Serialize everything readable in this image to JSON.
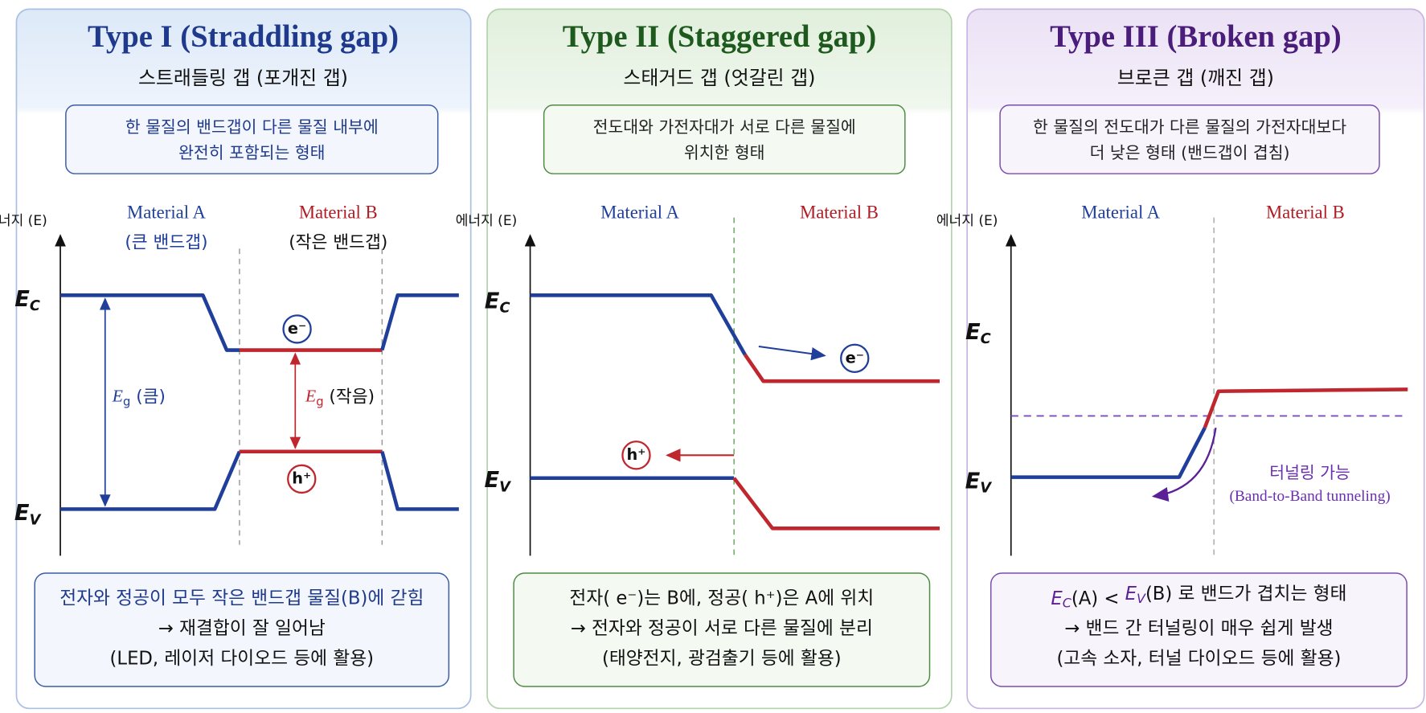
{
  "panels": [
    {
      "title": "Type I (Straddling gap)",
      "subtitle": "스트래들링 갭 (포개진 갭)",
      "description": [
        "한 물질의 밴드갭이 다른 물질 내부에",
        "완전히 포함되는 형태"
      ],
      "axis_label": "에너지 (E)",
      "material_a": "Material A",
      "material_a_note": "(큰 밴드갭)",
      "material_b": "Material B",
      "material_b_note": "(작은 밴드갭)",
      "conduction_label": {
        "symbol": "E",
        "subscript": "C"
      },
      "valence_label": {
        "symbol": "E",
        "subscript": "V"
      },
      "gap_large": {
        "symbol": "E",
        "subscript": "g",
        "note": "(큼)"
      },
      "gap_small": {
        "symbol": "E",
        "subscript": "g",
        "note": "(작음)"
      },
      "electron": "e⁻",
      "hole": "h⁺",
      "summary": [
        "전자와 정공이 모두 작은 밴드갭 물질(B)에 갇힘",
        "→ 재결합이 잘 일어남",
        "(LED, 레이저 다이오드 등에 활용)"
      ]
    },
    {
      "title": "Type II (Staggered gap)",
      "subtitle": "스태거드 갭 (엇갈린 갭)",
      "description": [
        "전도대와 가전자대가 서로 다른 물질에",
        "위치한 형태"
      ],
      "axis_label": "에너지 (E)",
      "material_a": "Material A",
      "material_b": "Material B",
      "conduction_label": {
        "symbol": "E",
        "subscript": "C"
      },
      "valence_label": {
        "symbol": "E",
        "subscript": "V"
      },
      "electron": "e⁻",
      "hole": "h⁺",
      "summary": [
        "전자( e⁻)는 B에, 정공( h⁺)은 A에 위치",
        "→ 전자와 정공이 서로 다른 물질에 분리",
        "(태양전지, 광검출기 등에 활용)"
      ]
    },
    {
      "title": "Type III (Broken gap)",
      "subtitle": "브로큰 갭 (깨진 갭)",
      "description": [
        "한 물질의 전도대가 다른 물질의 가전자대보다",
        "더 낮은 형태 (밴드갭이 겹침)"
      ],
      "axis_label": "에너지 (E)",
      "material_a": "Material A",
      "material_b": "Material B",
      "conduction_label": {
        "symbol": "E",
        "subscript": "C"
      },
      "valence_label": {
        "symbol": "E",
        "subscript": "V"
      },
      "tunneling": [
        "터널링 가능",
        "(Band-to-Band tunneling)"
      ],
      "summary_condition": [
        "E",
        "C",
        "(A) < ",
        "E",
        "V",
        "(B) 로 밴드가 겹치는 형태"
      ],
      "summary": [
        "→ 밴드 간 터널링이 매우 쉽게 발생",
        "(고속 소자, 터널 다이오드 등에 활용)"
      ]
    }
  ]
}
